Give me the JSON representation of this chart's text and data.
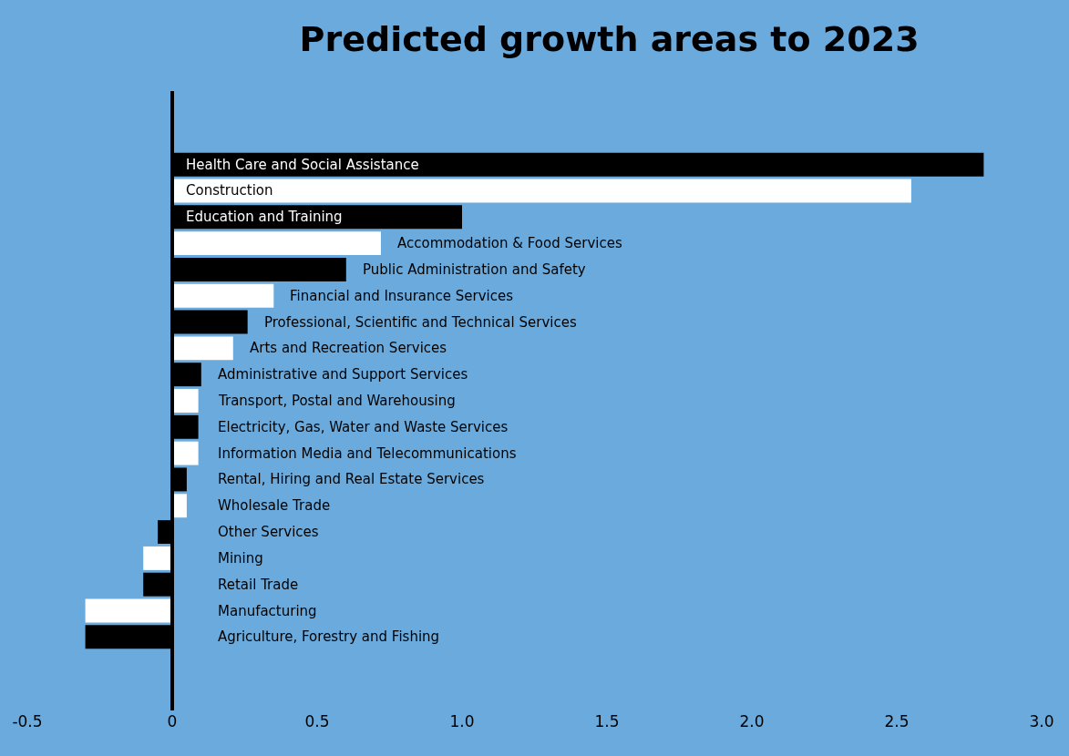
{
  "chart_data": {
    "type": "bar",
    "orientation": "horizontal",
    "title": "Predicted growth areas to 2023",
    "categories": [
      "Health Care and Social Assistance",
      "Construction",
      "Education and Training",
      "Accommodation & Food Services",
      "Public Administration and Safety",
      "Financial and Insurance Services",
      "Professional, Scientific and Technical Services",
      "Arts and Recreation Services",
      "Administrative and Support Services",
      "Transport, Postal and Warehousing",
      "Electricity, Gas, Water and Waste Services",
      "Information Media and Telecommunications",
      "Rental, Hiring and Real Estate Services",
      "Wholesale Trade",
      "Other Services",
      "Mining",
      "Retail Trade",
      "Manufacturing",
      "Agriculture, Forestry and Fishing"
    ],
    "values": [
      2.8,
      2.55,
      1.0,
      0.72,
      0.6,
      0.35,
      0.26,
      0.21,
      0.1,
      0.09,
      0.09,
      0.09,
      0.05,
      0.05,
      -0.05,
      -0.1,
      -0.1,
      -0.3,
      -0.3
    ],
    "colors": [
      "#000000",
      "#ffffff",
      "#000000",
      "#ffffff",
      "#000000",
      "#ffffff",
      "#000000",
      "#ffffff",
      "#000000",
      "#ffffff",
      "#000000",
      "#ffffff",
      "#000000",
      "#ffffff",
      "#000000",
      "#ffffff",
      "#000000",
      "#ffffff",
      "#000000"
    ],
    "xlim": [
      -0.5,
      3.0
    ],
    "xticks": [
      -0.5,
      0,
      0.5,
      {
        "value": 1,
        "label": "1.0"
      },
      1.5,
      {
        "value": 2,
        "label": "2.0"
      },
      2.5,
      {
        "value": 3,
        "label": "3.0"
      }
    ],
    "ref_lines": [
      {
        "axis": "x",
        "value": 0,
        "color": "#000000"
      }
    ],
    "grid": false,
    "legend": false
  }
}
